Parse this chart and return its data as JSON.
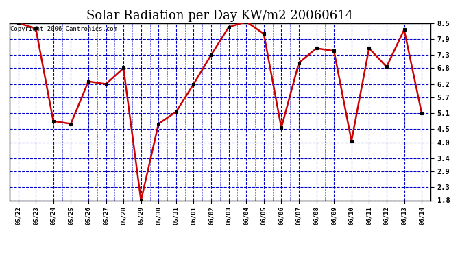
{
  "title": "Solar Radiation per Day KW/m2 20060614",
  "copyright": "Copyright 2006 Cantronics.com",
  "dates": [
    "05/22",
    "05/23",
    "05/24",
    "05/25",
    "05/26",
    "05/27",
    "05/28",
    "05/29",
    "05/30",
    "05/31",
    "06/01",
    "06/02",
    "06/03",
    "06/04",
    "06/05",
    "06/06",
    "06/07",
    "06/08",
    "06/09",
    "06/10",
    "06/11",
    "06/12",
    "06/13",
    "06/14"
  ],
  "values": [
    8.5,
    8.3,
    4.8,
    4.7,
    6.3,
    6.2,
    6.8,
    1.8,
    4.7,
    5.15,
    6.2,
    7.3,
    8.35,
    8.55,
    8.1,
    4.55,
    7.0,
    7.55,
    7.45,
    4.05,
    7.55,
    6.85,
    8.25,
    5.1
  ],
  "line_color": "#cc0000",
  "marker_color": "#000000",
  "bg_color": "#ffffff",
  "plot_bg_color": "#ffffff",
  "grid_color": "#0000cc",
  "border_color": "#000000",
  "title_fontsize": 13,
  "copyright_fontsize": 6.5,
  "yticks": [
    1.8,
    2.3,
    2.9,
    3.4,
    4.0,
    4.5,
    5.1,
    5.7,
    6.2,
    6.8,
    7.3,
    7.9,
    8.5
  ],
  "ymin": 1.8,
  "ymax": 8.5
}
